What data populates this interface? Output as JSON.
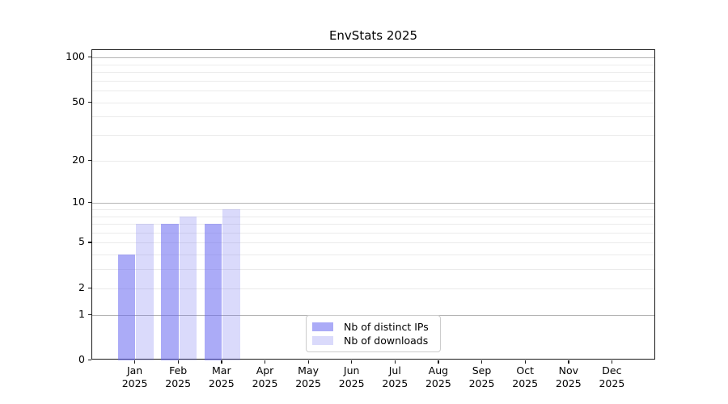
{
  "chart_data": {
    "type": "bar",
    "title": "EnvStats 2025",
    "categories": [
      "Jan",
      "Feb",
      "Mar",
      "Apr",
      "May",
      "Jun",
      "Jul",
      "Aug",
      "Sep",
      "Oct",
      "Nov",
      "Dec"
    ],
    "x_year_label": "2025",
    "series": [
      {
        "name": "Nb of distinct IPs",
        "color": "rgba(102,102,240,0.55)",
        "values": [
          4,
          7,
          7,
          0,
          0,
          0,
          0,
          0,
          0,
          0,
          0,
          0
        ]
      },
      {
        "name": "Nb of downloads",
        "color": "rgba(102,102,240,0.24)",
        "values": [
          7,
          8,
          9,
          0,
          0,
          0,
          0,
          0,
          0,
          0,
          0,
          0
        ]
      }
    ],
    "y_axis": {
      "scale": "log1p",
      "tick_labels": [
        100,
        50,
        20,
        10,
        5,
        2,
        1,
        0
      ],
      "major_gridlines": [
        1,
        10,
        100
      ],
      "minor_gridlines": [
        2,
        3,
        4,
        5,
        6,
        7,
        8,
        9,
        20,
        30,
        40,
        50,
        60,
        70,
        80,
        90
      ],
      "ylim": [
        0,
        110
      ]
    },
    "legend_position": "inside-bottom-center",
    "colors": {
      "bars_distinct_ips": "rgba(102,102,240,0.55)",
      "bars_downloads": "rgba(102,102,240,0.24)",
      "major_grid": "#b4b4b4",
      "minor_grid": "#ebebeb",
      "spine": "#1a1a1a",
      "text": "#000000"
    }
  }
}
